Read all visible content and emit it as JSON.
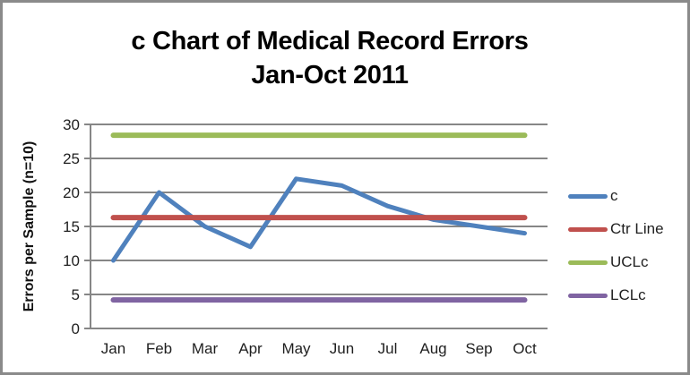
{
  "title": {
    "line1": "c Chart of Medical Record Errors",
    "line2": "Jan-Oct 2011"
  },
  "y_axis": {
    "title": "Errors per Sample (n=10)"
  },
  "chart_data": {
    "type": "line",
    "title": "c Chart of Medical Record Errors Jan-Oct 2011",
    "xlabel": "",
    "ylabel": "Errors per Sample (n=10)",
    "categories": [
      "Jan",
      "Feb",
      "Mar",
      "Apr",
      "May",
      "Jun",
      "Jul",
      "Aug",
      "Sep",
      "Oct"
    ],
    "ylim": [
      0,
      30
    ],
    "yticks": [
      0,
      5,
      10,
      15,
      20,
      25,
      30
    ],
    "grid": true,
    "legend_position": "right",
    "series": [
      {
        "name": "c",
        "type": "line",
        "color": "#4F81BD",
        "values": [
          10,
          20,
          15,
          12,
          22,
          21,
          18,
          16,
          15,
          14
        ]
      },
      {
        "name": "Ctr Line",
        "type": "hline",
        "color": "#C0504D",
        "value": 16.3
      },
      {
        "name": "UCLc",
        "type": "hline",
        "color": "#9BBB59",
        "value": 28.41
      },
      {
        "name": "LCLc",
        "type": "hline",
        "color": "#8064A2",
        "value": 4.19
      }
    ],
    "colors": {
      "axis": "#868686",
      "gridline": "#868686",
      "text": "#1f1f1f"
    }
  }
}
